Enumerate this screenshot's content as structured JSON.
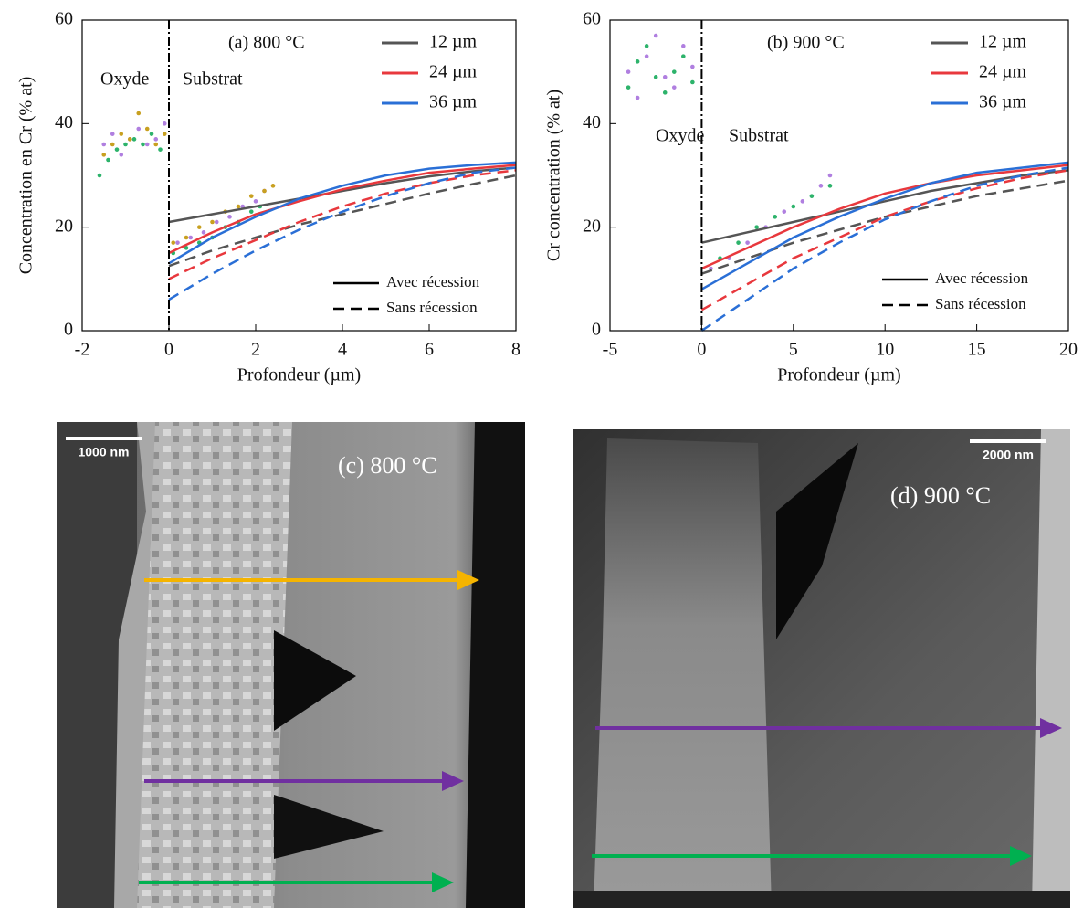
{
  "chart_data": [
    {
      "type": "line",
      "annotation": "(a) 800 °C",
      "oxide_label": "Oxyde",
      "substrate_label": "Substrat",
      "x_label": "Profondeur (µm)",
      "y_label": "Concentration en Cr (% at)",
      "xlim": [
        -2,
        8
      ],
      "xticks": [
        -2,
        0,
        2,
        4,
        6,
        8
      ],
      "ylim": [
        0,
        60
      ],
      "yticks": [
        0,
        20,
        40,
        60
      ],
      "divider_x": 0,
      "x": [
        0,
        1,
        2,
        3,
        4,
        5,
        6,
        7,
        8
      ],
      "series": [
        {
          "name": "12 µm",
          "color": "#555555",
          "values": [
            21,
            22.5,
            24,
            25.5,
            27,
            28.5,
            29.8,
            30.8,
            31.5
          ],
          "values_dashed": [
            12.5,
            15.5,
            18,
            20.5,
            22.5,
            24.5,
            26.5,
            28.3,
            30
          ]
        },
        {
          "name": "24 µm",
          "color": "#e8383d",
          "values": [
            15,
            19,
            22.5,
            25,
            27.3,
            29,
            30.5,
            31.3,
            32
          ],
          "values_dashed": [
            10,
            14,
            17.5,
            21,
            24,
            26.5,
            28.5,
            30,
            31
          ]
        },
        {
          "name": "36 µm",
          "color": "#2a6fd6",
          "values": [
            13,
            18,
            22,
            25.5,
            28,
            30,
            31.3,
            32,
            32.5
          ],
          "values_dashed": [
            6,
            11,
            15.5,
            19.5,
            23,
            26,
            28.5,
            30.5,
            31.5
          ]
        }
      ],
      "style_legend": [
        "Avec récession",
        "Sans récession"
      ],
      "scatter": [
        {
          "color": "#2db36b",
          "x": [
            -1.6,
            -1.4,
            -1.2,
            -1.0,
            -0.8,
            -0.6,
            -0.4,
            -0.2,
            0.1,
            0.4,
            0.7,
            1.0,
            1.3,
            1.6,
            1.9,
            2.1
          ],
          "y": [
            30,
            33,
            35,
            36,
            37,
            36,
            38,
            35,
            15,
            16,
            17,
            18,
            20,
            21,
            23,
            24
          ]
        },
        {
          "color": "#b07fe0",
          "x": [
            -1.5,
            -1.3,
            -1.1,
            -0.9,
            -0.7,
            -0.5,
            -0.3,
            -0.1,
            0.2,
            0.5,
            0.8,
            1.1,
            1.4,
            1.7,
            2.0,
            2.2
          ],
          "y": [
            36,
            38,
            34,
            37,
            39,
            36,
            37,
            40,
            17,
            18,
            19,
            21,
            22,
            24,
            25,
            27
          ]
        },
        {
          "color": "#c8a020",
          "x": [
            -1.5,
            -1.3,
            -1.1,
            -0.9,
            -0.7,
            -0.5,
            -0.3,
            -0.1,
            0.1,
            0.4,
            0.7,
            1.0,
            1.3,
            1.6,
            1.9,
            2.2,
            2.4
          ],
          "y": [
            34,
            36,
            38,
            37,
            42,
            39,
            36,
            38,
            17,
            18,
            20,
            21,
            23,
            24,
            26,
            27,
            28
          ]
        }
      ]
    },
    {
      "type": "line",
      "annotation": "(b) 900 °C",
      "oxide_label": "Oxyde",
      "substrate_label": "Substrat",
      "x_label": "Profondeur (µm)",
      "y_label": "Cr concentration (% at)",
      "xlim": [
        -5,
        20
      ],
      "xticks": [
        -5,
        0,
        5,
        10,
        15,
        20
      ],
      "ylim": [
        0,
        60
      ],
      "yticks": [
        0,
        20,
        40,
        60
      ],
      "divider_x": 0,
      "x": [
        0,
        2.5,
        5,
        7.5,
        10,
        12.5,
        15,
        17.5,
        20
      ],
      "series": [
        {
          "name": "12 µm",
          "color": "#555555",
          "values": [
            17,
            19,
            21,
            23,
            25,
            27,
            28.5,
            30,
            31
          ],
          "values_dashed": [
            11,
            14,
            17,
            19.5,
            22,
            24,
            26,
            27.5,
            29
          ]
        },
        {
          "name": "24 µm",
          "color": "#e8383d",
          "values": [
            12,
            16,
            20,
            23.5,
            26.5,
            28.5,
            30,
            31,
            32
          ],
          "values_dashed": [
            4,
            9,
            14,
            18,
            22,
            25,
            27.5,
            29.5,
            31
          ]
        },
        {
          "name": "36 µm",
          "color": "#2a6fd6",
          "values": [
            8,
            13,
            18,
            22,
            25.5,
            28.5,
            30.5,
            31.5,
            32.5
          ],
          "values_dashed": [
            0,
            6,
            12,
            17,
            21.5,
            25,
            28,
            30,
            31.5
          ]
        }
      ],
      "style_legend": [
        "Avec récession",
        "Sans récession"
      ],
      "scatter": [
        {
          "color": "#2db36b",
          "x": [
            -4,
            -3.5,
            -3,
            -2.5,
            -2,
            -1.5,
            -1,
            -0.5,
            1,
            2,
            3,
            4,
            5,
            6,
            7
          ],
          "y": [
            47,
            52,
            55,
            49,
            46,
            50,
            53,
            48,
            14,
            17,
            20,
            22,
            24,
            26,
            28
          ]
        },
        {
          "color": "#b07fe0",
          "x": [
            -4,
            -3.5,
            -3,
            -2.5,
            -2,
            -1.5,
            -1,
            -0.5,
            0.5,
            1.5,
            2.5,
            3.5,
            4.5,
            5.5,
            6.5,
            7
          ],
          "y": [
            50,
            45,
            53,
            57,
            49,
            47,
            55,
            51,
            12,
            14,
            17,
            20,
            23,
            25,
            28,
            30
          ]
        }
      ]
    }
  ],
  "images": [
    {
      "label": "(c) 800 °C",
      "scale_bar": "1000 nm",
      "arrow_colors": [
        "#f5b400",
        "#7030a0",
        "#00b050"
      ]
    },
    {
      "label": "(d) 900 °C",
      "scale_bar": "2000 nm",
      "arrow_colors": [
        "#7030a0",
        "#00b050"
      ]
    }
  ]
}
